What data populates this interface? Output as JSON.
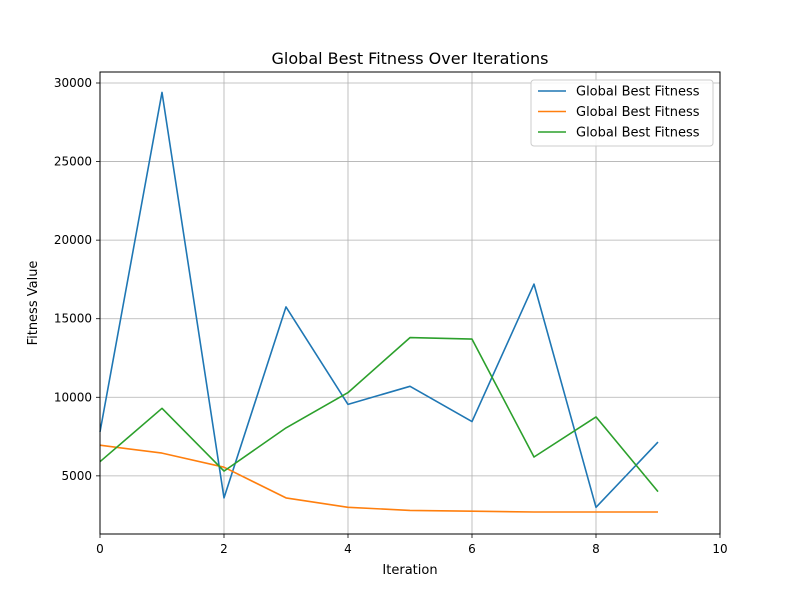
{
  "chart_data": {
    "type": "line",
    "title": "Global Best Fitness Over Iterations",
    "xlabel": "Iteration",
    "ylabel": "Fitness Value",
    "xlim": [
      0,
      10
    ],
    "ylim": [
      1300,
      30700
    ],
    "grid": true,
    "legend_position": "top-right",
    "x_ticks": [
      0,
      2,
      4,
      6,
      8,
      10
    ],
    "y_ticks": [
      5000,
      10000,
      15000,
      20000,
      25000,
      30000
    ],
    "x_tick_labels": [
      "0",
      "2",
      "4",
      "6",
      "8",
      "10"
    ],
    "y_tick_labels": [
      "5000",
      "10000",
      "15000",
      "20000",
      "25000",
      "30000"
    ],
    "x": [
      0,
      1,
      2,
      3,
      4,
      5,
      6,
      7,
      8,
      9
    ],
    "series": [
      {
        "name": "Global Best Fitness",
        "color": "#1f77b4",
        "values": [
          7800,
          29400,
          3600,
          15750,
          9550,
          10700,
          8450,
          17200,
          3000,
          7150
        ]
      },
      {
        "name": "Global Best Fitness",
        "color": "#ff7f0e",
        "values": [
          6950,
          6450,
          5550,
          3600,
          3000,
          2800,
          2750,
          2700,
          2700,
          2700
        ]
      },
      {
        "name": "Global Best Fitness",
        "color": "#2ca02c",
        "values": [
          5900,
          9300,
          5300,
          8050,
          10300,
          13800,
          13700,
          6200,
          8750,
          4000
        ]
      }
    ]
  }
}
